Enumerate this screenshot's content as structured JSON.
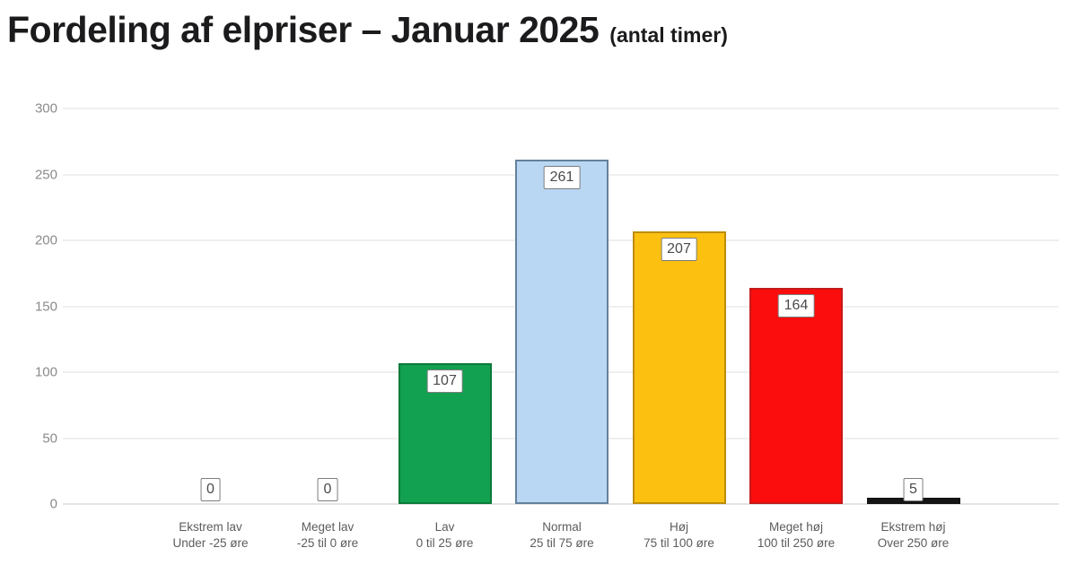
{
  "title": "Fordeling af elpriser – Januar 2025",
  "subtitle": "(antal timer)",
  "chart_data": {
    "type": "bar",
    "title": "Fordeling af elpriser – Januar 2025",
    "subtitle": "(antal timer)",
    "xlabel": "",
    "ylabel": "",
    "ylim": [
      0,
      300
    ],
    "yticks": [
      0,
      50,
      100,
      150,
      200,
      250,
      300
    ],
    "grid": true,
    "legend": false,
    "categories": [
      "Ekstrem lav",
      "Meget lav",
      "Lav",
      "Normal",
      "Høj",
      "Meget høj",
      "Ekstrem høj"
    ],
    "category_sublabels": [
      "Under -25 øre",
      "-25 til 0 øre",
      "0 til 25 øre",
      "25 til 75 øre",
      "75 til 100 øre",
      "100 til 250 øre",
      "Over 250 øre"
    ],
    "values": [
      0,
      0,
      107,
      261,
      207,
      164,
      5
    ],
    "bar_fill_colors": [
      "",
      "",
      "#12a150",
      "#b9d7f2",
      "#fcc011",
      "#fc0d0d",
      "#141414"
    ],
    "bar_border_colors": [
      "",
      "",
      "#0c7a3a",
      "#64819b",
      "#bd8d08",
      "#c51a1a",
      "#141414"
    ],
    "value_label_style": {
      "background": "#ffffff",
      "border_color": "#7d7d7d",
      "text_color": "#4b4b4b"
    },
    "colors": {
      "title_text": "#1b1b1d",
      "axis_tick_text": "#8a8a8a",
      "category_text": "#5c5c5c",
      "gridline": "#efefef",
      "baseline": "#e4e4e4",
      "background": "#ffffff"
    }
  }
}
